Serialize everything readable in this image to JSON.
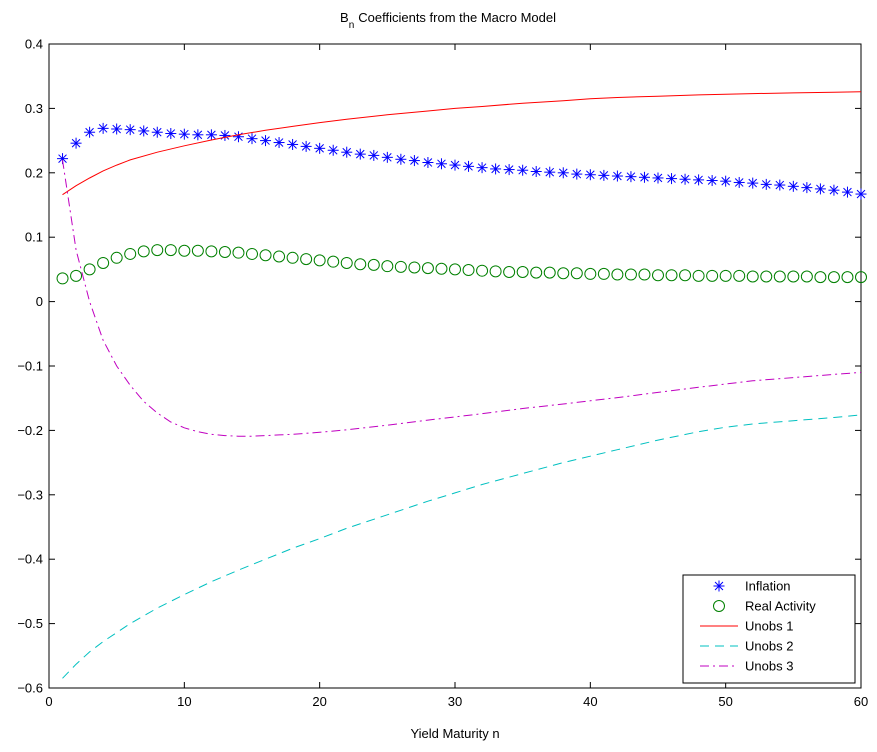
{
  "chart_data": {
    "type": "line",
    "title": "Coefficients from the Macro Model",
    "title_prefix": "B",
    "title_subscript": "n",
    "xlabel": "Yield Maturity n",
    "ylabel": "",
    "xlim": [
      0,
      60
    ],
    "ylim": [
      -0.6,
      0.4
    ],
    "xticks": [
      0,
      10,
      20,
      30,
      40,
      50,
      60
    ],
    "yticks": [
      -0.6,
      -0.5,
      -0.4,
      -0.3,
      -0.2,
      -0.1,
      0,
      0.1,
      0.2,
      0.3,
      0.4
    ],
    "xtick_labels": [
      "0",
      "10",
      "20",
      "30",
      "40",
      "50",
      "60"
    ],
    "ytick_labels": [
      "−0.6",
      "−0.5",
      "−0.4",
      "−0.3",
      "−0.2",
      "−0.1",
      "0",
      "0.1",
      "0.2",
      "0.3",
      "0.4"
    ],
    "grid": false,
    "legend_position": "bottom-right",
    "series": [
      {
        "name": "Inflation",
        "marker": "asterisk",
        "color": "#0000ff",
        "x": [
          1,
          2,
          3,
          4,
          5,
          6,
          7,
          8,
          9,
          10,
          11,
          12,
          13,
          14,
          15,
          16,
          17,
          18,
          19,
          20,
          21,
          22,
          23,
          24,
          25,
          26,
          27,
          28,
          29,
          30,
          31,
          32,
          33,
          34,
          35,
          36,
          37,
          38,
          39,
          40,
          41,
          42,
          43,
          44,
          45,
          46,
          47,
          48,
          49,
          50,
          51,
          52,
          53,
          54,
          55,
          56,
          57,
          58,
          59,
          60
        ],
        "values": [
          0.222,
          0.246,
          0.263,
          0.269,
          0.268,
          0.267,
          0.265,
          0.263,
          0.261,
          0.26,
          0.259,
          0.259,
          0.258,
          0.256,
          0.253,
          0.25,
          0.247,
          0.244,
          0.241,
          0.238,
          0.235,
          0.232,
          0.229,
          0.227,
          0.224,
          0.221,
          0.219,
          0.216,
          0.214,
          0.212,
          0.21,
          0.208,
          0.206,
          0.205,
          0.204,
          0.202,
          0.201,
          0.2,
          0.198,
          0.197,
          0.196,
          0.195,
          0.194,
          0.193,
          0.192,
          0.191,
          0.19,
          0.189,
          0.188,
          0.187,
          0.185,
          0.184,
          0.182,
          0.181,
          0.179,
          0.177,
          0.175,
          0.173,
          0.17,
          0.167
        ]
      },
      {
        "name": "Real Activity",
        "marker": "circle",
        "color": "#008000",
        "x": [
          1,
          2,
          3,
          4,
          5,
          6,
          7,
          8,
          9,
          10,
          11,
          12,
          13,
          14,
          15,
          16,
          17,
          18,
          19,
          20,
          21,
          22,
          23,
          24,
          25,
          26,
          27,
          28,
          29,
          30,
          31,
          32,
          33,
          34,
          35,
          36,
          37,
          38,
          39,
          40,
          41,
          42,
          43,
          44,
          45,
          46,
          47,
          48,
          49,
          50,
          51,
          52,
          53,
          54,
          55,
          56,
          57,
          58,
          59,
          60
        ],
        "values": [
          0.036,
          0.04,
          0.05,
          0.06,
          0.068,
          0.074,
          0.078,
          0.08,
          0.08,
          0.079,
          0.079,
          0.078,
          0.077,
          0.076,
          0.074,
          0.072,
          0.07,
          0.068,
          0.066,
          0.064,
          0.062,
          0.06,
          0.058,
          0.057,
          0.055,
          0.054,
          0.053,
          0.052,
          0.051,
          0.05,
          0.049,
          0.048,
          0.047,
          0.046,
          0.046,
          0.045,
          0.045,
          0.044,
          0.044,
          0.043,
          0.043,
          0.042,
          0.042,
          0.042,
          0.041,
          0.041,
          0.041,
          0.04,
          0.04,
          0.04,
          0.04,
          0.039,
          0.039,
          0.039,
          0.039,
          0.039,
          0.038,
          0.038,
          0.038,
          0.038
        ]
      },
      {
        "name": "Unobs 1",
        "line_style": "solid",
        "color": "#ff0000",
        "x": [
          1,
          2,
          3,
          4,
          5,
          6,
          8,
          10,
          12,
          14,
          16,
          18,
          20,
          22,
          25,
          28,
          30,
          32,
          35,
          38,
          40,
          42,
          45,
          48,
          50,
          52,
          55,
          58,
          60
        ],
        "values": [
          0.166,
          0.18,
          0.192,
          0.203,
          0.212,
          0.22,
          0.232,
          0.242,
          0.251,
          0.259,
          0.266,
          0.272,
          0.278,
          0.283,
          0.29,
          0.296,
          0.3,
          0.303,
          0.308,
          0.312,
          0.315,
          0.317,
          0.319,
          0.321,
          0.322,
          0.323,
          0.324,
          0.325,
          0.326
        ]
      },
      {
        "name": "Unobs 2",
        "line_style": "dashed",
        "color": "#00c0c0",
        "x": [
          1,
          2,
          3,
          4,
          5,
          6,
          8,
          10,
          12,
          14,
          16,
          18,
          20,
          22,
          25,
          28,
          30,
          32,
          35,
          38,
          40,
          42,
          45,
          48,
          50,
          52,
          55,
          58,
          60
        ],
        "values": [
          -0.585,
          -0.563,
          -0.544,
          -0.528,
          -0.514,
          -0.5,
          -0.476,
          -0.455,
          -0.435,
          -0.417,
          -0.4,
          -0.383,
          -0.368,
          -0.352,
          -0.331,
          -0.31,
          -0.297,
          -0.284,
          -0.267,
          -0.25,
          -0.24,
          -0.23,
          -0.215,
          -0.202,
          -0.195,
          -0.19,
          -0.185,
          -0.18,
          -0.176
        ]
      },
      {
        "name": "Unobs 3",
        "line_style": "dashdot",
        "color": "#c000c0",
        "x": [
          1,
          2,
          3,
          4,
          5,
          6,
          7,
          8,
          9,
          10,
          11,
          12,
          13,
          14,
          15,
          16,
          17,
          18,
          20,
          22,
          25,
          28,
          30,
          32,
          35,
          38,
          40,
          42,
          45,
          48,
          50,
          52,
          55,
          58,
          60
        ],
        "values": [
          0.22,
          0.08,
          0.0,
          -0.06,
          -0.1,
          -0.13,
          -0.155,
          -0.173,
          -0.187,
          -0.196,
          -0.202,
          -0.206,
          -0.208,
          -0.209,
          -0.209,
          -0.208,
          -0.207,
          -0.206,
          -0.203,
          -0.199,
          -0.192,
          -0.184,
          -0.179,
          -0.174,
          -0.166,
          -0.159,
          -0.154,
          -0.149,
          -0.141,
          -0.133,
          -0.128,
          -0.123,
          -0.118,
          -0.113,
          -0.11
        ]
      }
    ]
  }
}
